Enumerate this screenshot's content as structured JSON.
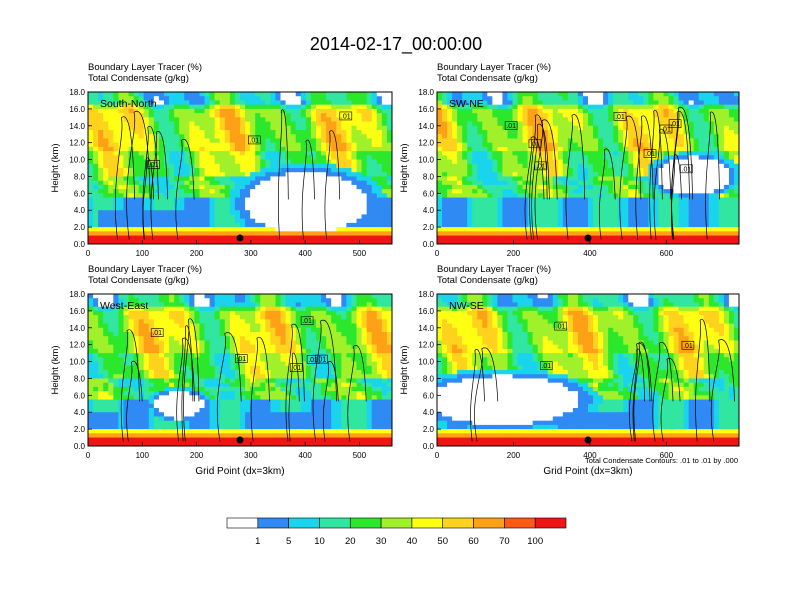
{
  "title": "2014-02-17_00:00:00",
  "colorbar": {
    "colors": [
      "#ffffff",
      "#2f8af4",
      "#19d4ec",
      "#31e6a0",
      "#2ce82c",
      "#a0f02a",
      "#ffff14",
      "#ffd21e",
      "#ffa116",
      "#ff5a14",
      "#f01414"
    ],
    "labels": [
      "1",
      "5",
      "10",
      "20",
      "30",
      "40",
      "50",
      "60",
      "70",
      "100"
    ]
  },
  "footnote": "Total Condensate Contours: .01 to .01 by .000",
  "chart_data": [
    {
      "type": "heatmap",
      "panel_name": "South-North",
      "subtitle_left": "Boundary Layer Tracer",
      "subtitle_left2": "Total Condensate",
      "unit1": "(%)",
      "unit2": "(g/kg)",
      "ylabel": "Height (km)",
      "xlabel": "",
      "ylim": [
        0,
        18
      ],
      "xlim": [
        0,
        560
      ],
      "yticks": [
        "0.0",
        "2.0",
        "4.0",
        "6.0",
        "8.0",
        "10.0",
        "12.0",
        "14.0",
        "16.0",
        "18.0"
      ],
      "xticks": [
        {
          "value": 0,
          "label": "0"
        },
        {
          "value": 100,
          "label": "100"
        },
        {
          "value": 200,
          "label": "200"
        },
        {
          "value": 300,
          "label": "300"
        },
        {
          "value": 400,
          "label": "400"
        },
        {
          "value": 500,
          "label": "500"
        }
      ],
      "contour_labels": [
        ".01",
        ".01",
        ".01"
      ],
      "marker_x": 280
    },
    {
      "type": "heatmap",
      "panel_name": "SW-NE",
      "subtitle_left": "Boundary Layer Tracer",
      "subtitle_left2": "Total Condensate",
      "unit1": "(%)",
      "unit2": "(g/kg)",
      "ylabel": "Height (km)",
      "xlabel": "",
      "ylim": [
        0,
        18
      ],
      "xlim": [
        0,
        790
      ],
      "yticks": [
        "0.0",
        "2.0",
        "4.0",
        "6.0",
        "8.0",
        "10.0",
        "12.0",
        "14.0",
        "16.0",
        "18.0"
      ],
      "xticks": [
        {
          "value": 0,
          "label": "0"
        },
        {
          "value": 200,
          "label": "200"
        },
        {
          "value": 400,
          "label": "400"
        },
        {
          "value": 600,
          "label": "600"
        }
      ],
      "contour_labels": [
        ".01",
        ".01",
        ".01",
        ".01",
        ".01",
        ".01",
        ".01",
        ".01"
      ],
      "marker_x": 395
    },
    {
      "type": "heatmap",
      "panel_name": "West-East",
      "subtitle_left": "Boundary Layer Tracer",
      "subtitle_left2": "Total Condensate",
      "unit1": "(%)",
      "unit2": "(g/kg)",
      "ylabel": "Height (km)",
      "xlabel": "Grid Point (dx=3km)",
      "ylim": [
        0,
        18
      ],
      "xlim": [
        0,
        560
      ],
      "yticks": [
        "0.0",
        "2.0",
        "4.0",
        "6.0",
        "8.0",
        "10.0",
        "12.0",
        "14.0",
        "16.0",
        "18.0"
      ],
      "xticks": [
        {
          "value": 0,
          "label": "0"
        },
        {
          "value": 100,
          "label": "100"
        },
        {
          "value": 200,
          "label": "200"
        },
        {
          "value": 300,
          "label": "300"
        },
        {
          "value": 400,
          "label": "400"
        },
        {
          "value": 500,
          "label": "500"
        }
      ],
      "contour_labels": [
        ".01",
        ".01",
        ".01",
        ".01",
        ".01",
        ".01"
      ],
      "marker_x": 280
    },
    {
      "type": "heatmap",
      "panel_name": "NW-SE",
      "subtitle_left": "Boundary Layer Tracer",
      "subtitle_left2": "Total Condensate",
      "unit1": "(%)",
      "unit2": "(g/kg)",
      "ylabel": "Height (km)",
      "xlabel": "Grid Point (dx=3km)",
      "ylim": [
        0,
        18
      ],
      "xlim": [
        0,
        790
      ],
      "yticks": [
        "0.0",
        "2.0",
        "4.0",
        "6.0",
        "8.0",
        "10.0",
        "12.0",
        "14.0",
        "16.0",
        "18.0"
      ],
      "xticks": [
        {
          "value": 0,
          "label": "0"
        },
        {
          "value": 200,
          "label": "200"
        },
        {
          "value": 400,
          "label": "400"
        },
        {
          "value": 600,
          "label": "600"
        }
      ],
      "contour_labels": [
        ".01",
        ".01",
        ".01"
      ],
      "marker_x": 395
    }
  ]
}
